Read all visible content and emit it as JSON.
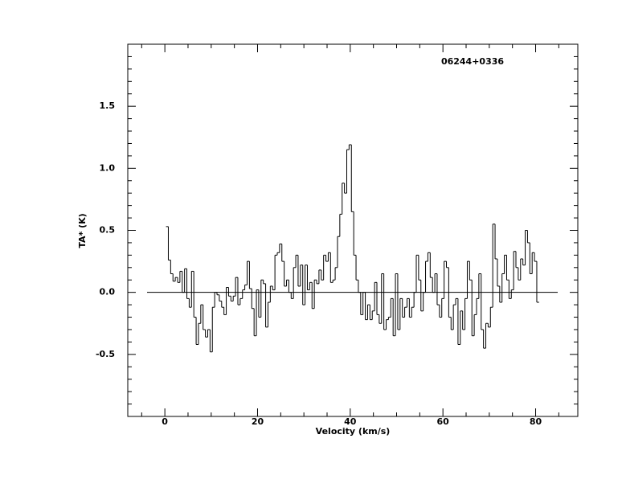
{
  "chart_data": {
    "type": "step",
    "annotation": "06244+0336",
    "x_label": "Velocity (km/s)",
    "y_label": "TA* (K)",
    "xlim": [
      -8,
      89.1
    ],
    "ylim": [
      -1,
      2
    ],
    "xticks": [
      0,
      20,
      40,
      60,
      80
    ],
    "yticks": [
      -0.5,
      {
        "value": 0,
        "label": "0.0"
      },
      0.5,
      {
        "value": 1,
        "label": "1.0"
      },
      1.5
    ],
    "color": "#000000",
    "x": [
      0.5,
      1,
      1.5,
      2,
      2.5,
      3,
      3.5,
      4,
      4.5,
      5,
      5.5,
      6,
      6.5,
      7,
      7.5,
      8,
      8.5,
      9,
      9.5,
      10,
      10.5,
      11,
      11.5,
      12,
      12.5,
      13,
      13.5,
      14,
      14.5,
      15,
      15.5,
      16,
      16.5,
      17,
      17.5,
      18,
      18.5,
      19,
      19.5,
      20,
      20.5,
      21,
      21.5,
      22,
      22.5,
      23,
      23.5,
      24,
      24.5,
      25,
      25.5,
      26,
      26.5,
      27,
      27.5,
      28,
      28.5,
      29,
      29.5,
      30,
      30.5,
      31,
      31.5,
      32,
      32.5,
      33,
      33.5,
      34,
      34.5,
      35,
      35.5,
      36,
      36.5,
      37,
      37.5,
      38,
      38.5,
      39,
      39.5,
      40,
      40.5,
      41,
      41.5,
      42,
      42.5,
      43,
      43.5,
      44,
      44.5,
      45,
      45.5,
      46,
      46.5,
      47,
      47.5,
      48,
      48.5,
      49,
      49.5,
      50,
      50.5,
      51,
      51.5,
      52,
      52.5,
      53,
      53.5,
      54,
      54.5,
      55,
      55.5,
      56,
      56.5,
      57,
      57.5,
      58,
      58.5,
      59,
      59.5,
      60,
      60.5,
      61,
      61.5,
      62,
      62.5,
      63,
      63.5,
      64,
      64.5,
      65,
      65.5,
      66,
      66.5,
      67,
      67.5,
      68,
      68.5,
      69,
      69.5,
      70,
      70.5,
      71,
      71.5,
      72,
      72.5,
      73,
      73.5,
      74,
      74.5,
      75,
      75.5,
      76,
      76.5,
      77,
      77.5,
      78,
      78.5,
      79,
      79.5,
      80,
      80.5
    ],
    "values": [
      0.53,
      0.26,
      0.15,
      0.09,
      0.12,
      0.08,
      0.17,
      0.0,
      0.19,
      -0.05,
      -0.12,
      0.17,
      -0.2,
      -0.42,
      -0.25,
      -0.1,
      -0.3,
      -0.36,
      -0.3,
      -0.48,
      -0.12,
      0.0,
      -0.02,
      -0.07,
      -0.12,
      -0.18,
      0.04,
      -0.03,
      -0.07,
      -0.03,
      0.12,
      -0.1,
      -0.05,
      0.02,
      0.06,
      0.25,
      0.03,
      -0.13,
      -0.35,
      0.02,
      -0.2,
      0.1,
      0.07,
      -0.28,
      -0.08,
      0.05,
      0.02,
      0.3,
      0.32,
      0.39,
      0.25,
      0.05,
      0.1,
      0.0,
      -0.05,
      0.2,
      0.3,
      0.05,
      0.22,
      -0.1,
      0.22,
      0.02,
      0.08,
      -0.13,
      0.1,
      0.07,
      0.18,
      0.1,
      0.3,
      0.25,
      0.32,
      0.08,
      0.1,
      0.2,
      0.45,
      0.63,
      0.88,
      0.8,
      1.15,
      1.19,
      0.65,
      0.3,
      0.1,
      0.0,
      -0.18,
      0.0,
      -0.22,
      -0.1,
      -0.22,
      -0.15,
      0.08,
      -0.18,
      -0.25,
      0.15,
      -0.3,
      -0.22,
      -0.2,
      -0.05,
      -0.35,
      0.15,
      -0.3,
      -0.05,
      -0.2,
      -0.12,
      -0.05,
      -0.2,
      -0.12,
      0.0,
      0.3,
      0.1,
      -0.15,
      0.0,
      0.25,
      0.32,
      0.12,
      0.0,
      0.15,
      -0.1,
      -0.2,
      -0.05,
      0.25,
      0.2,
      -0.2,
      -0.3,
      -0.1,
      -0.05,
      -0.42,
      -0.15,
      -0.3,
      -0.05,
      0.25,
      0.1,
      -0.35,
      -0.18,
      -0.05,
      0.15,
      -0.3,
      -0.45,
      -0.25,
      -0.28,
      -0.12,
      0.55,
      0.27,
      0.05,
      -0.08,
      0.15,
      0.3,
      0.1,
      -0.05,
      0.02,
      0.33,
      0.2,
      0.1,
      0.27,
      0.22,
      0.5,
      0.4,
      0.15,
      0.32,
      0.25,
      -0.08
    ]
  }
}
